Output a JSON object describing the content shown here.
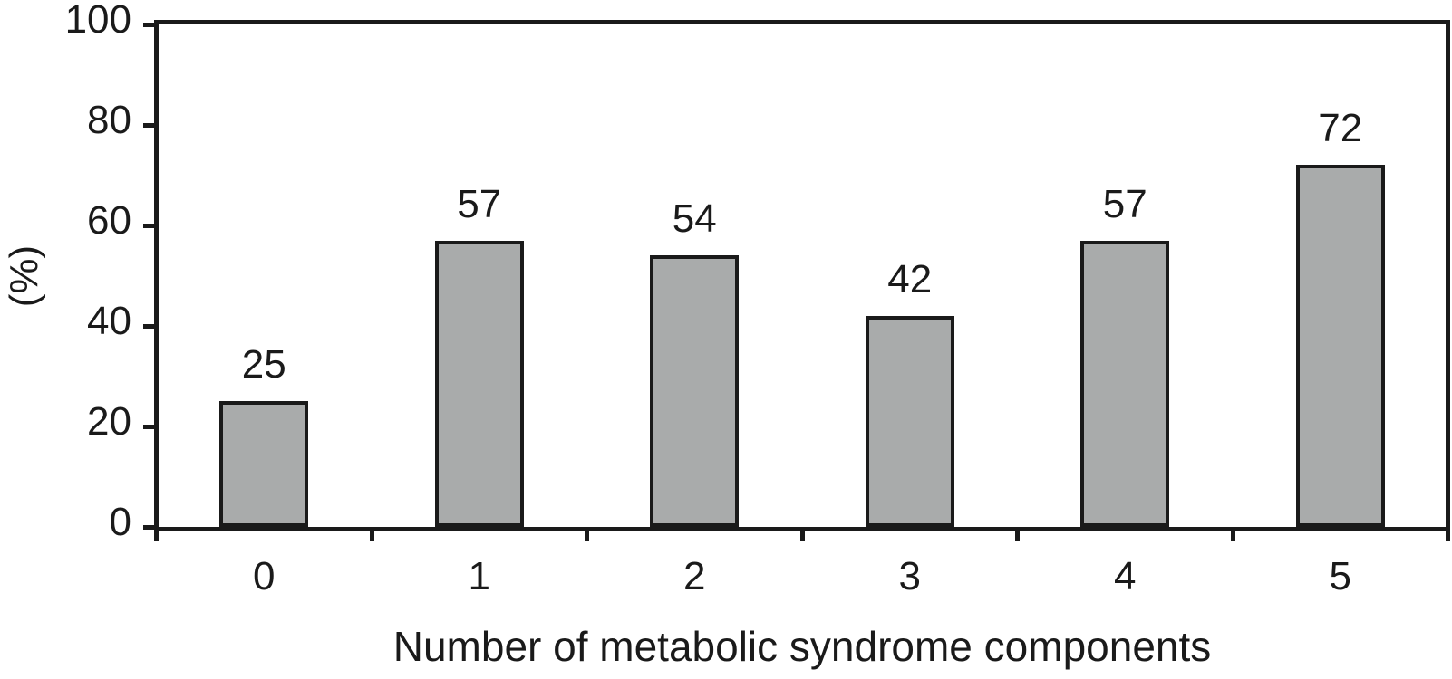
{
  "chart_data": {
    "type": "bar",
    "categories": [
      "0",
      "1",
      "2",
      "3",
      "4",
      "5"
    ],
    "values": [
      25,
      57,
      54,
      42,
      57,
      72
    ],
    "data_labels": [
      "25",
      "57",
      "54",
      "42",
      "57",
      "72"
    ],
    "title": "",
    "xlabel": "Number of metabolic syndrome components",
    "ylabel": "(%)",
    "ylim": [
      0,
      100
    ],
    "yticks": [
      0,
      20,
      40,
      60,
      80,
      100
    ],
    "ytick_labels": [
      "0",
      "20",
      "40",
      "60",
      "80",
      "100"
    ],
    "grid": false,
    "legend": null,
    "layout": {
      "bar_fill": "#a9abab",
      "bar_border": "#1a1a1a",
      "axis_color": "#1a1a1a",
      "text_color": "#1a1a1a",
      "background": "#ffffff",
      "frame": "full-box",
      "tick_direction": "out"
    }
  }
}
